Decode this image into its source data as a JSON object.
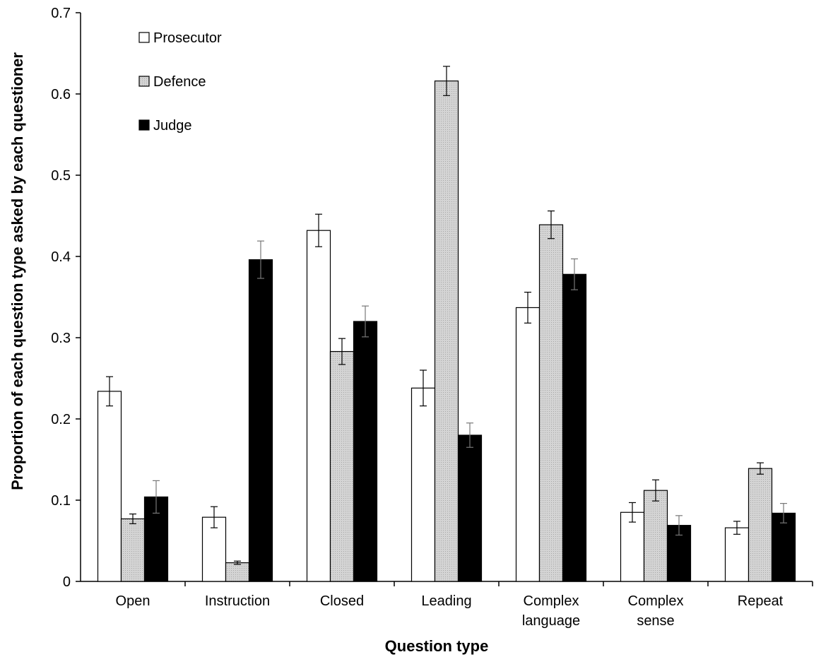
{
  "chart_data": {
    "type": "bar",
    "title": "",
    "xlabel": "Question type",
    "ylabel": "Proportion of each question type asked by each questioner",
    "ylim": [
      0,
      0.7
    ],
    "yticks": [
      "0",
      "0.1",
      "0.2",
      "0.3",
      "0.4",
      "0.5",
      "0.6",
      "0.7"
    ],
    "ytick_values": [
      0,
      0.1,
      0.2,
      0.3,
      0.4,
      0.5,
      0.6,
      0.7
    ],
    "categories": [
      [
        "Open"
      ],
      [
        "Instruction"
      ],
      [
        "Closed"
      ],
      [
        "Leading"
      ],
      [
        "Complex",
        "language"
      ],
      [
        "Complex",
        "sense"
      ],
      [
        "Repeat"
      ]
    ],
    "legend_position": "top-left",
    "grid": false,
    "series": [
      {
        "name": "Prosecutor",
        "color": "#ffffff",
        "values": [
          0.234,
          0.079,
          0.432,
          0.238,
          0.337,
          0.085,
          0.066
        ],
        "errors": [
          0.018,
          0.013,
          0.02,
          0.022,
          0.019,
          0.012,
          0.008
        ]
      },
      {
        "name": "Defence",
        "color": "#c8c8c8",
        "values": [
          0.077,
          0.023,
          0.283,
          0.616,
          0.439,
          0.112,
          0.139
        ],
        "errors": [
          0.006,
          0.002,
          0.016,
          0.018,
          0.017,
          0.013,
          0.007
        ]
      },
      {
        "name": "Judge",
        "color": "#000000",
        "values": [
          0.104,
          0.396,
          0.32,
          0.18,
          0.378,
          0.069,
          0.084
        ],
        "errors": [
          0.02,
          0.023,
          0.019,
          0.015,
          0.019,
          0.012,
          0.012
        ]
      }
    ]
  }
}
